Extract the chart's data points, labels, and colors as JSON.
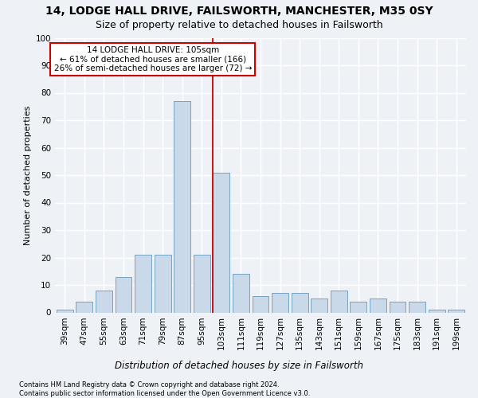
{
  "title": "14, LODGE HALL DRIVE, FAILSWORTH, MANCHESTER, M35 0SY",
  "subtitle": "Size of property relative to detached houses in Failsworth",
  "xlabel": "Distribution of detached houses by size in Failsworth",
  "ylabel": "Number of detached properties",
  "categories": [
    "39sqm",
    "47sqm",
    "55sqm",
    "63sqm",
    "71sqm",
    "79sqm",
    "87sqm",
    "95sqm",
    "103sqm",
    "111sqm",
    "119sqm",
    "127sqm",
    "135sqm",
    "143sqm",
    "151sqm",
    "159sqm",
    "167sqm",
    "175sqm",
    "183sqm",
    "191sqm",
    "199sqm"
  ],
  "values": [
    1,
    4,
    8,
    13,
    21,
    21,
    77,
    21,
    51,
    14,
    6,
    7,
    7,
    5,
    8,
    4,
    5,
    4,
    4,
    1,
    1
  ],
  "bar_color": "#c9d9ea",
  "bar_edge_color": "#6699bb",
  "background_color": "#eef2f7",
  "grid_color": "#ffffff",
  "vline_index": 8,
  "vline_color": "#cc0000",
  "annotation_line1": "14 LODGE HALL DRIVE: 105sqm",
  "annotation_line2": "← 61% of detached houses are smaller (166)",
  "annotation_line3": "26% of semi-detached houses are larger (72) →",
  "annotation_box_color": "#ffffff",
  "annotation_box_edge_color": "#cc0000",
  "footnote1": "Contains HM Land Registry data © Crown copyright and database right 2024.",
  "footnote2": "Contains public sector information licensed under the Open Government Licence v3.0.",
  "ylim": [
    0,
    100
  ],
  "yticks": [
    0,
    10,
    20,
    30,
    40,
    50,
    60,
    70,
    80,
    90,
    100
  ],
  "title_fontsize": 10,
  "subtitle_fontsize": 9,
  "xlabel_fontsize": 8.5,
  "ylabel_fontsize": 8,
  "tick_fontsize": 7.5,
  "footnote_fontsize": 6.0,
  "annotation_fontsize": 7.5
}
